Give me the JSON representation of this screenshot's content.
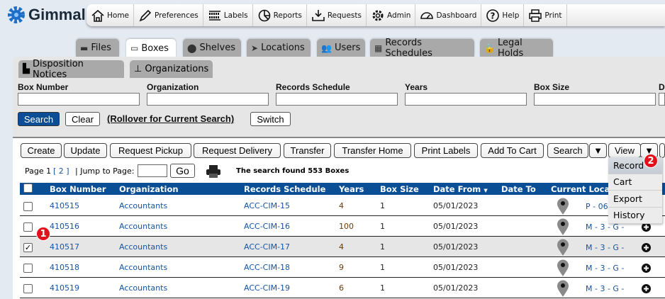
{
  "app": {
    "name": "Gimmal",
    "logo_icon": "gear-icon"
  },
  "nav": [
    {
      "label": "Home",
      "icon": "home-icon"
    },
    {
      "label": "Preferences",
      "icon": "pencil-icon"
    },
    {
      "label": "Labels",
      "icon": "barcode-icon"
    },
    {
      "label": "Reports",
      "icon": "pie-chart-icon"
    },
    {
      "label": "Requests",
      "icon": "inbox-download-icon"
    },
    {
      "label": "Admin",
      "icon": "gear-icon"
    },
    {
      "label": "Dashboard",
      "icon": "gauge-icon"
    },
    {
      "label": "Help",
      "icon": "help-icon"
    },
    {
      "label": "Print",
      "icon": "printer-icon"
    }
  ],
  "tabs": [
    {
      "label": "Files"
    },
    {
      "label": "Boxes",
      "active": true
    },
    {
      "label": "Shelves"
    },
    {
      "label": "Locations"
    },
    {
      "label": "Users"
    },
    {
      "label": "Records Schedules"
    },
    {
      "label": "Legal Holds"
    }
  ],
  "subtabs": [
    {
      "label": "Disposition Notices"
    },
    {
      "label": "Organizations"
    }
  ],
  "search": {
    "fields": [
      {
        "label": "Box Number",
        "value": ""
      },
      {
        "label": "Organization",
        "value": ""
      },
      {
        "label": "Records Schedule",
        "value": ""
      },
      {
        "label": "Years",
        "value": ""
      },
      {
        "label": "Box Size",
        "value": ""
      },
      {
        "label": "D",
        "value": ""
      }
    ],
    "search_label": "Search",
    "clear_label": "Clear",
    "rollover_label": "(Rollover for Current Search)",
    "switch_label": "Switch"
  },
  "toolbar": [
    "Create",
    "Update",
    "Request Pickup",
    "Request Delivery",
    "Transfer",
    "Transfer Home",
    "Print Labels",
    "Add To Cart",
    "Search",
    "View"
  ],
  "view_menu": [
    "Record",
    "Cart",
    "Export",
    "History"
  ],
  "paging": {
    "page_label": "Page 1",
    "pages": "[ 2 ]",
    "jump_label": "| Jump to Page:",
    "jump_value": "",
    "go_label": "Go",
    "result_text": "The search found  553 Boxes"
  },
  "table": {
    "headers": [
      "Box Number",
      "Organization",
      "Records Schedule",
      "Years",
      "Box Size",
      "Date From",
      "Date To",
      "Current Locat"
    ],
    "sort_column": "Date From",
    "rows": [
      {
        "checked": false,
        "box": "410515",
        "org": "Accountants",
        "rs": "ACC-CIM-15",
        "years": "4",
        "size": "1",
        "from": "05/01/2023",
        "to": "",
        "loc": "P - 06"
      },
      {
        "checked": false,
        "box": "410516",
        "org": "Accountants",
        "rs": "ACC-CIM-16",
        "years": "100",
        "size": "1",
        "from": "05/01/2023",
        "to": "",
        "loc": "M - 3 - G -"
      },
      {
        "checked": true,
        "box": "410517",
        "org": "Accountants",
        "rs": "ACC-CIM-17",
        "years": "4",
        "size": "1",
        "from": "05/01/2023",
        "to": "",
        "loc": "M - 3 - G -"
      },
      {
        "checked": false,
        "box": "410518",
        "org": "Accountants",
        "rs": "ACC-CIM-18",
        "years": "9",
        "size": "1",
        "from": "05/01/2023",
        "to": "",
        "loc": "M - 3 - G -"
      },
      {
        "checked": false,
        "box": "410519",
        "org": "Accountants",
        "rs": "ACC-CIM-19",
        "years": "6",
        "size": "1",
        "from": "05/01/2023",
        "to": "",
        "loc": "M - 3 - G -"
      }
    ]
  },
  "annotations": [
    "1",
    "2"
  ],
  "colors": {
    "header_blue": "#0a4f96",
    "link": "#1554a4",
    "badge": "#e3101c"
  }
}
